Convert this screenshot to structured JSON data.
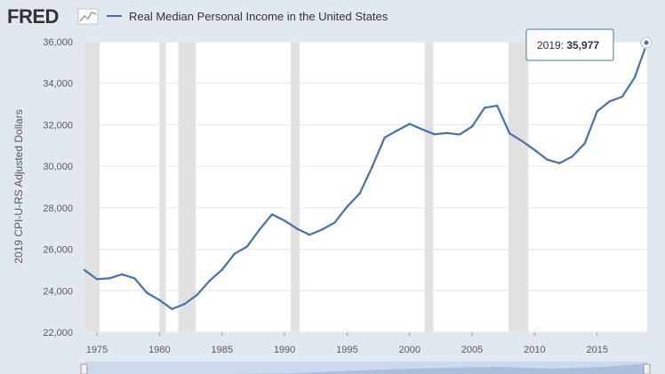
{
  "logo": {
    "text": "FRED"
  },
  "legend": {
    "label": "Real Median Personal Income in the United States"
  },
  "tooltip": {
    "year": "2019",
    "value": "35,977"
  },
  "colors": {
    "line": "#4572a7",
    "recession": "#e1e1e1",
    "background": "#e1e9f0",
    "plot": "#ffffff",
    "grid": "#e6e6e6"
  },
  "chart_data": {
    "type": "line",
    "title": "",
    "xlabel": "",
    "ylabel": "2019 CPI-U-RS Adjusted Dollars",
    "xlim": [
      1974,
      2019
    ],
    "ylim": [
      22000,
      36000
    ],
    "x_ticks": [
      "1975",
      "1980",
      "1985",
      "1990",
      "1995",
      "2000",
      "2005",
      "2010",
      "2015"
    ],
    "y_ticks": [
      "22,000",
      "24,000",
      "26,000",
      "28,000",
      "30,000",
      "32,000",
      "34,000",
      "36,000"
    ],
    "recessions": [
      [
        1973.9,
        1975.2
      ],
      [
        1980.0,
        1980.5
      ],
      [
        1981.5,
        1982.9
      ],
      [
        1990.5,
        1991.2
      ],
      [
        2001.2,
        2001.9
      ],
      [
        2007.9,
        2009.5
      ]
    ],
    "series": [
      {
        "name": "Real Median Personal Income in the United States",
        "x": [
          1974,
          1975,
          1976,
          1977,
          1978,
          1979,
          1980,
          1981,
          1982,
          1983,
          1984,
          1985,
          1986,
          1987,
          1988,
          1989,
          1990,
          1991,
          1992,
          1993,
          1994,
          1995,
          1996,
          1997,
          1998,
          1999,
          2000,
          2001,
          2002,
          2003,
          2004,
          2005,
          2006,
          2007,
          2008,
          2009,
          2010,
          2011,
          2012,
          2013,
          2014,
          2015,
          2016,
          2017,
          2018,
          2019
        ],
        "values": [
          25000,
          24560,
          24600,
          24790,
          24600,
          23900,
          23550,
          23120,
          23360,
          23800,
          24480,
          25010,
          25780,
          26130,
          26950,
          27680,
          27380,
          26990,
          26700,
          26950,
          27280,
          28050,
          28680,
          29960,
          31380,
          31720,
          32040,
          31780,
          31540,
          31600,
          31530,
          31920,
          32820,
          32920,
          31580,
          31210,
          30780,
          30320,
          30150,
          30470,
          31100,
          32650,
          33130,
          33350,
          34280,
          35977
        ]
      }
    ]
  }
}
